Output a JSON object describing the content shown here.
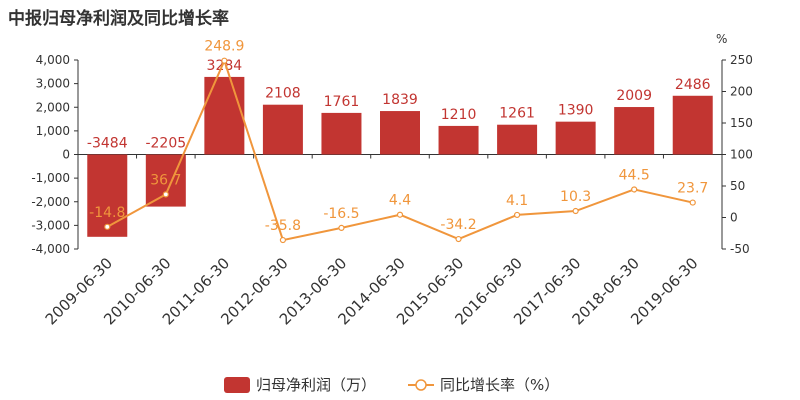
{
  "title": "中报归母净利润及同比增长率",
  "colors": {
    "bar": "#c23531",
    "line": "#f0963c",
    "axis": "#333333"
  },
  "chart_data": {
    "type": "bar+line",
    "title": "中报归母净利润及同比增长率",
    "categories": [
      "2009-06-30",
      "2010-06-30",
      "2011-06-30",
      "2012-06-30",
      "2013-06-30",
      "2014-06-30",
      "2015-06-30",
      "2016-06-30",
      "2017-06-30",
      "2018-06-30",
      "2019-06-30"
    ],
    "series": [
      {
        "name": "归母净利润（万）",
        "type": "bar",
        "axis": "left",
        "values": [
          -3484,
          -2205,
          3284,
          2108,
          1761,
          1839,
          1210,
          1261,
          1390,
          2009,
          2486
        ]
      },
      {
        "name": "同比增长率（%）",
        "type": "line",
        "axis": "right",
        "values": [
          -14.8,
          36.7,
          248.9,
          -35.8,
          -16.5,
          4.4,
          -34.2,
          4.1,
          10.3,
          44.5,
          23.7
        ]
      }
    ],
    "y_left": {
      "ylim": [
        -4000,
        4000
      ],
      "ticks": [
        "4,000",
        "3,000",
        "2,000",
        "1,000",
        "0",
        "-1,000",
        "-2,000",
        "-3,000",
        "-4,000"
      ]
    },
    "y_right": {
      "ylim": [
        -50,
        250
      ],
      "label": "%",
      "ticks": [
        "250",
        "200",
        "150",
        "100",
        "50",
        "0",
        "-50"
      ]
    },
    "legend_position": "bottom-center"
  }
}
